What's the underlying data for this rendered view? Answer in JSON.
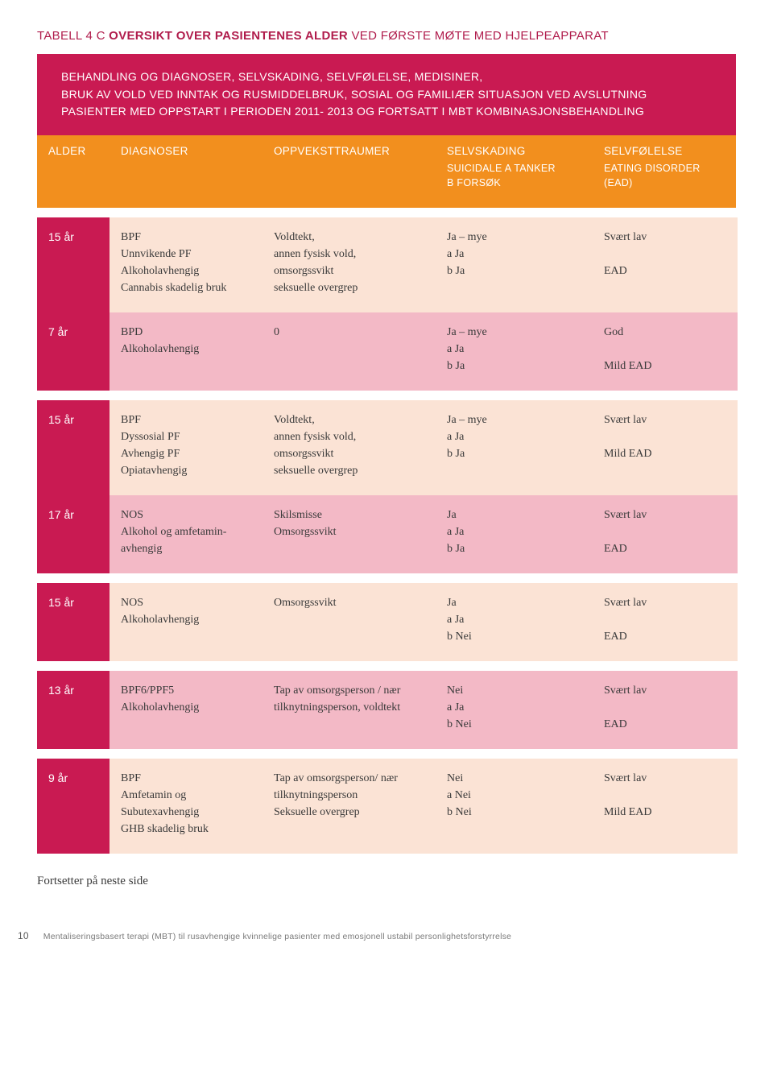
{
  "colors": {
    "magenta": "#c91a52",
    "orange": "#f28f1e",
    "peach": "#fbe3d5",
    "pink": "#f3b9c6",
    "text": "#3a3a3a",
    "title": "#b01c4c"
  },
  "title_prefix": "TABELL 4 C ",
  "title_bold": "OVERSIKT OVER PASIENTENES ALDER ",
  "title_light": "VED FØRSTE MØTE MED HJELPEAPPARAT",
  "header_line1": "BEHANDLING OG DIAGNOSER, SELVSKADING, SELVFØLELSE, MEDISINER,",
  "header_line2": "BRUK AV VOLD VED INNTAK OG RUSMIDDELBRUK, SOSIAL OG FAMILIÆR SITUASJON VED AVSLUTNING",
  "header_line3": "PASIENTER MED OPPSTART I PERIODEN 2011- 2013 OG FORTSATT I MBT KOMBINASJONSBEHANDLING",
  "columns": {
    "alder": "ALDER",
    "diagnoser": "DIAGNOSER",
    "oppvekst": "OPPVEKSTTRAUMER",
    "selvskading": "SELVSKADING",
    "selvskading_sub": "SUICIDALE A TANKER\nB FORSØK",
    "selvfolelse": "SELVFØLELSE",
    "selvfolelse_sub": "EATING DISORDER\n(EAD)"
  },
  "groups": [
    {
      "rows": [
        {
          "bg": "a",
          "age": "15 år",
          "diag": "BPF\nUnnvikende PF\nAlkoholavhengig\nCannabis skadelig bruk",
          "opp": "Voldtekt,\nannen fysisk vold,\nomsorgssvikt\nseksuelle overgrep",
          "sk": "Ja – mye\na Ja\nb Ja",
          "sf": "Svært lav\n\nEAD"
        },
        {
          "bg": "b",
          "age": "7 år",
          "diag": "BPD\nAlkoholavhengig",
          "opp": "0",
          "sk": "Ja – mye\na Ja\nb Ja",
          "sf": "God\n\nMild EAD"
        }
      ]
    },
    {
      "rows": [
        {
          "bg": "a",
          "age": "15 år",
          "diag": "BPF\nDyssosial PF\nAvhengig PF\nOpiatavhengig",
          "opp": "Voldtekt,\nannen fysisk vold,\nomsorgssvikt\nseksuelle overgrep",
          "sk": "Ja – mye\na Ja\nb Ja",
          "sf": "Svært lav\n\nMild EAD"
        },
        {
          "bg": "b",
          "age": "17 år",
          "diag": "NOS\nAlkohol og amfetamin-avhengig",
          "opp": "Skilsmisse\nOmsorgssvikt",
          "sk": "Ja\na Ja\nb Ja",
          "sf": "Svært lav\n\nEAD"
        }
      ]
    },
    {
      "rows": [
        {
          "bg": "a",
          "age": "15 år",
          "diag": "NOS\nAlkoholavhengig",
          "opp": "Omsorgssvikt",
          "sk": "Ja\na Ja\nb Nei",
          "sf": "Svært lav\n\nEAD"
        }
      ]
    },
    {
      "rows": [
        {
          "bg": "b",
          "age": "13 år",
          "diag": "BPF6/PPF5\nAlkoholavhengig",
          "opp": "Tap av omsorgsperson / nær tilknytningsperson, voldtekt",
          "sk": "Nei\na Ja\nb Nei",
          "sf": "Svært lav\n\nEAD"
        }
      ]
    },
    {
      "rows": [
        {
          "bg": "a",
          "age": "9 år",
          "diag": "BPF\nAmfetamin og Subutexavhengig\nGHB skadelig bruk",
          "opp": "Tap av omsorgsperson/ nær tilknytningsperson\nSeksuelle overgrep",
          "sk": "Nei\na Nei\nb Nei",
          "sf": "Svært lav\n\nMild EAD"
        }
      ]
    }
  ],
  "continues": "Fortsetter på neste side",
  "page_number": "10",
  "footer_text": "Mentaliseringsbasert terapi (MBT) til rusavhengige kvinnelige pasienter med emosjonell ustabil personlighetsforstyrrelse"
}
